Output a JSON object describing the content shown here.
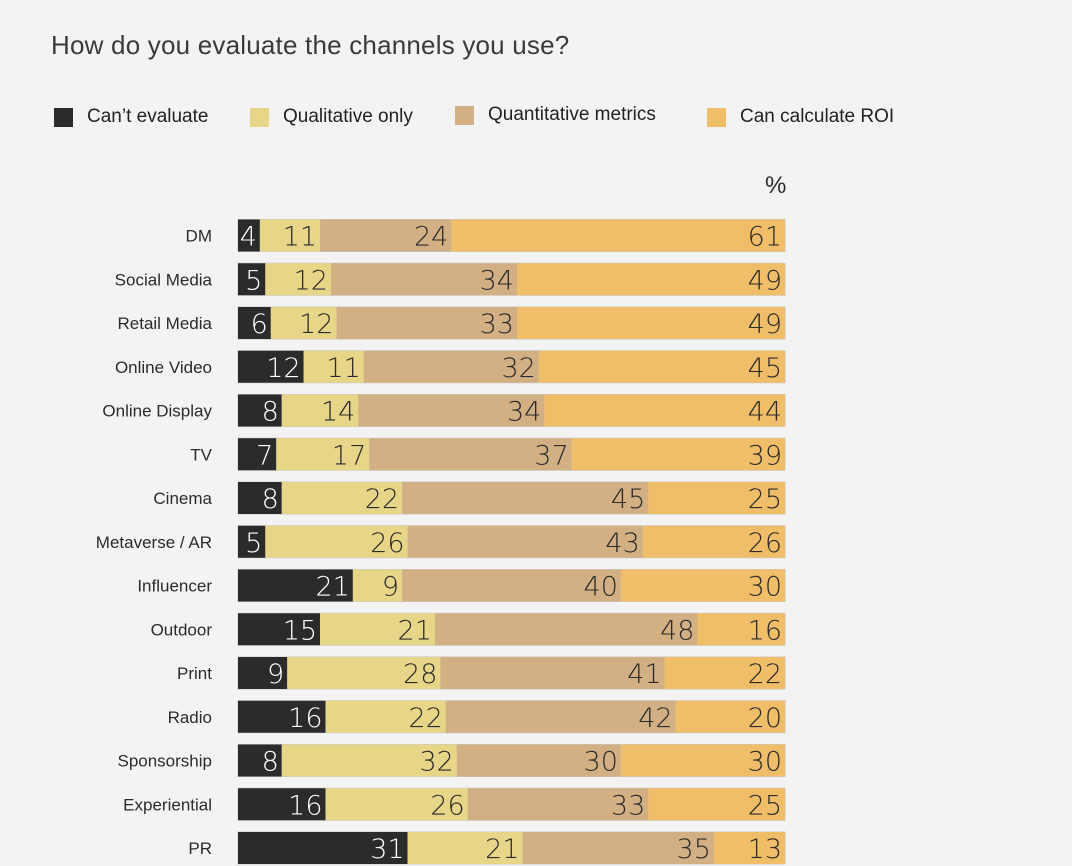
{
  "chart_data": {
    "type": "bar",
    "orientation": "horizontal",
    "stacked": true,
    "title": "How do you evaluate the channels you use?",
    "unit_label": "%",
    "xlabel": "",
    "ylabel": "",
    "xlim": [
      0,
      100
    ],
    "grid": false,
    "legend_position": "top-left",
    "categories": [
      "DM",
      "Social Media",
      "Retail Media",
      "Online Video",
      "Online Display",
      "TV",
      "Cinema",
      "Metaverse / AR",
      "Influencer",
      "Outdoor",
      "Print",
      "Radio",
      "Sponsorship",
      "Experiential",
      "PR"
    ],
    "series": [
      {
        "name": "Can’t evaluate",
        "color": "#2b2b2b",
        "label_color": "#ffffff",
        "values": [
          4,
          5,
          6,
          12,
          8,
          7,
          8,
          5,
          21,
          15,
          9,
          16,
          8,
          16,
          31
        ]
      },
      {
        "name": "Qualitative only",
        "color": "#e8d688",
        "label_color": "#2b2b2b",
        "values": [
          11,
          12,
          12,
          11,
          14,
          17,
          22,
          26,
          9,
          21,
          28,
          22,
          32,
          26,
          21
        ]
      },
      {
        "name": "Quantitative metrics",
        "color": "#d2b084",
        "label_color": "#2b2b2b",
        "values": [
          24,
          34,
          33,
          32,
          34,
          37,
          45,
          43,
          40,
          48,
          41,
          42,
          30,
          33,
          35
        ]
      },
      {
        "name": "Can calculate ROI",
        "color": "#f0be69",
        "label_color": "#2b2b2b",
        "values": [
          61,
          49,
          49,
          45,
          44,
          39,
          25,
          26,
          30,
          16,
          22,
          20,
          30,
          25,
          13
        ]
      }
    ]
  }
}
